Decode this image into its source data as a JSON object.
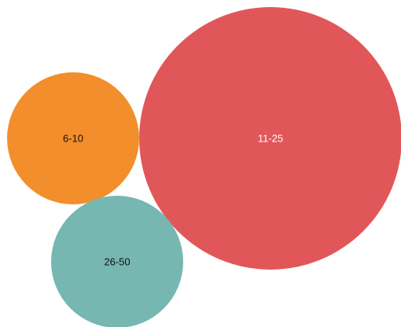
{
  "chart_data": {
    "type": "bubble",
    "title": "",
    "bubbles": [
      {
        "label": "11-25",
        "size": 3.95,
        "color": "#e15759",
        "label_color": "#ffffff"
      },
      {
        "label": "6-10",
        "size": 1.0,
        "color": "#f28e2b",
        "label_color": "#111111"
      },
      {
        "label": "26-50",
        "size": 1.0,
        "color": "#76b7b2",
        "label_color": "#111111"
      }
    ]
  }
}
